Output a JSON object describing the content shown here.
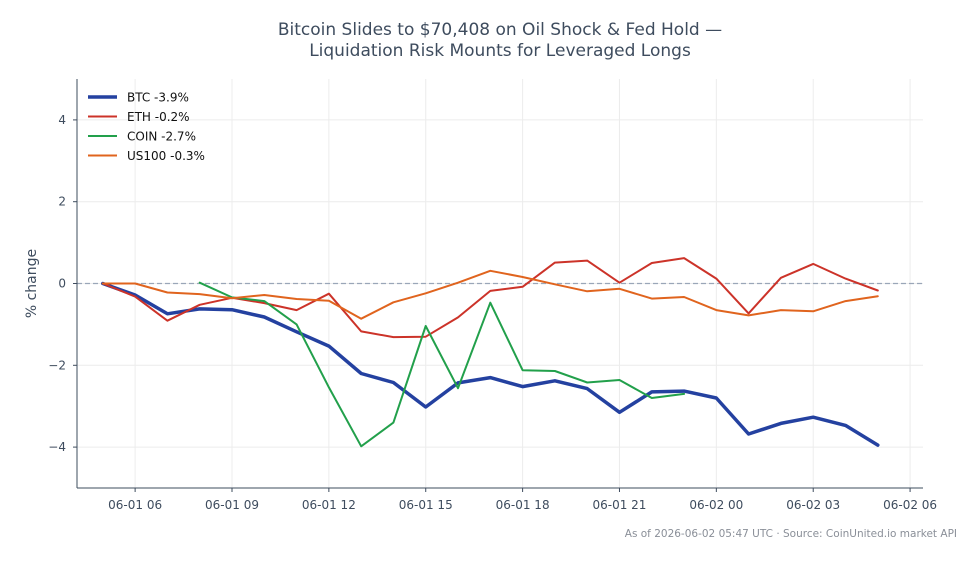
{
  "chart_data": {
    "type": "line",
    "title_lines": [
      "Bitcoin Slides to $70,408 on Oil Shock & Fed Hold —",
      "Liquidation Risk Mounts for Leveraged Longs"
    ],
    "xlabel": "",
    "ylabel": "% change",
    "ylim": [
      -5,
      5
    ],
    "yticks": [
      4,
      2,
      0,
      -2,
      -4
    ],
    "ytick_labels": [
      "4",
      "2",
      "0",
      "−2",
      "−4"
    ],
    "xlim": [
      4.2,
      30.4
    ],
    "xticks": [
      6,
      9,
      12,
      15,
      18,
      21,
      24,
      27,
      30
    ],
    "xtick_labels": [
      "06-01 06",
      "06-01 09",
      "06-01 12",
      "06-01 15",
      "06-01 18",
      "06-01 21",
      "06-02 00",
      "06-02 03",
      "06-02 06"
    ],
    "grid": true,
    "baseline": 0,
    "legend_position": "top-left",
    "series": [
      {
        "name": "BTC -3.9%",
        "color": "#2441a0",
        "width": 3.5,
        "x": [
          5,
          6,
          7,
          8,
          9,
          10,
          11,
          12,
          13,
          14,
          15,
          16,
          17,
          18,
          19,
          20,
          21,
          22,
          23,
          24,
          25,
          26,
          27,
          28,
          29
        ],
        "values": [
          0.0,
          -0.28,
          -0.74,
          -0.62,
          -0.64,
          -0.82,
          -1.18,
          -1.53,
          -2.2,
          -2.42,
          -3.02,
          -2.43,
          -2.3,
          -2.52,
          -2.38,
          -2.57,
          -3.15,
          -2.65,
          -2.63,
          -2.8,
          -3.68,
          -3.42,
          -3.27,
          -3.47,
          -3.95
        ]
      },
      {
        "name": "ETH -0.2%",
        "color": "#cc3329",
        "width": 2,
        "x": [
          5,
          6,
          7,
          8,
          9,
          10,
          11,
          12,
          13,
          14,
          15,
          16,
          17,
          18,
          19,
          20,
          21,
          22,
          23,
          24,
          25,
          26,
          27,
          28,
          29
        ],
        "values": [
          0.0,
          -0.32,
          -0.91,
          -0.52,
          -0.35,
          -0.48,
          -0.65,
          -0.25,
          -1.17,
          -1.31,
          -1.3,
          -0.83,
          -0.18,
          -0.08,
          0.51,
          0.56,
          0.02,
          0.5,
          0.62,
          0.12,
          -0.73,
          0.14,
          0.48,
          0.12,
          -0.17
        ]
      },
      {
        "name": "COIN -2.7%",
        "color": "#22a04b",
        "width": 2,
        "x": [
          8,
          9,
          10,
          11,
          12,
          13,
          14,
          15,
          16,
          17,
          18,
          19,
          20,
          21,
          22,
          23
        ],
        "values": [
          0.02,
          -0.34,
          -0.43,
          -1.0,
          -2.54,
          -3.98,
          -3.4,
          -1.04,
          -2.56,
          -0.47,
          -2.12,
          -2.14,
          -2.42,
          -2.36,
          -2.8,
          -2.7
        ]
      },
      {
        "name": "US100 -0.3%",
        "color": "#e0641e",
        "width": 2,
        "x": [
          5,
          6,
          7,
          8,
          9,
          10,
          11,
          12,
          13,
          14,
          15,
          16,
          17,
          18,
          19,
          20,
          21,
          22,
          23,
          24,
          25,
          26,
          27,
          28,
          29
        ],
        "values": [
          0.0,
          0.0,
          -0.22,
          -0.26,
          -0.36,
          -0.28,
          -0.38,
          -0.42,
          -0.86,
          -0.46,
          -0.24,
          0.02,
          0.31,
          0.16,
          -0.02,
          -0.19,
          -0.13,
          -0.37,
          -0.33,
          -0.65,
          -0.78,
          -0.65,
          -0.68,
          -0.43,
          -0.31
        ]
      }
    ],
    "annotation": "As of 2026-06-02 05:47 UTC · Source: CoinUnited.io market API"
  }
}
